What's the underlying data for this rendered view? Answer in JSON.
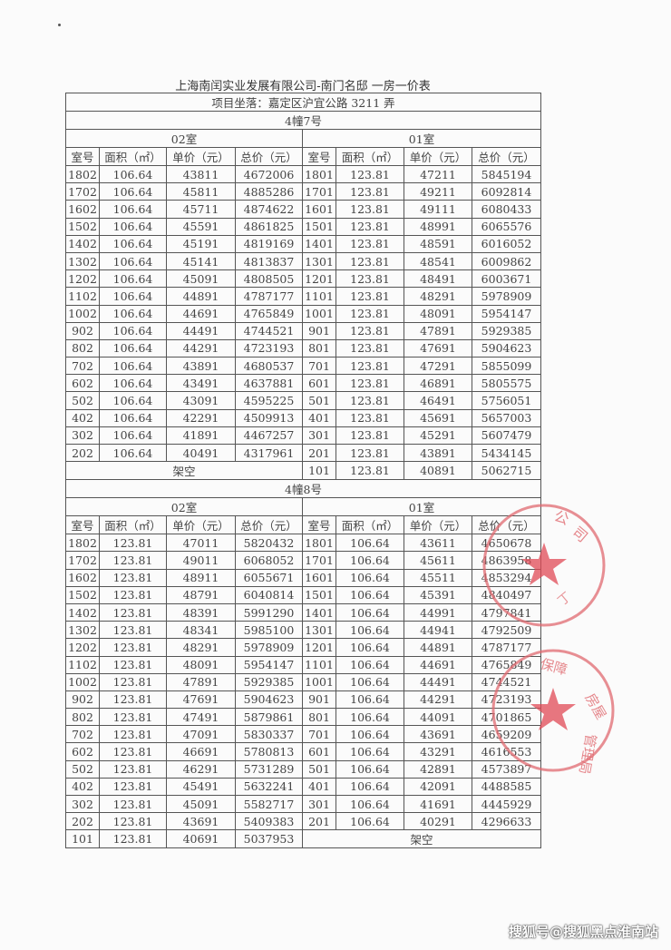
{
  "title": "上海南闰实业发展有限公司-南门名邸 一房一价表",
  "location": "项目坐落：嘉定区沪宜公路 3211 弄",
  "col_headers": [
    "室号",
    "面积（㎡）",
    "单价（元）",
    "总价（元）"
  ],
  "empty_label": "架空",
  "buildings": [
    {
      "name": "4幢7号",
      "left_unit": "02室",
      "right_unit": "01室",
      "rows": [
        [
          [
            "1802",
            "106.64",
            "43811",
            "4672006"
          ],
          [
            "1801",
            "123.81",
            "47211",
            "5845194"
          ]
        ],
        [
          [
            "1702",
            "106.64",
            "45811",
            "4885286"
          ],
          [
            "1701",
            "123.81",
            "49211",
            "6092814"
          ]
        ],
        [
          [
            "1602",
            "106.64",
            "45711",
            "4874622"
          ],
          [
            "1601",
            "123.81",
            "49111",
            "6080433"
          ]
        ],
        [
          [
            "1502",
            "106.64",
            "45591",
            "4861825"
          ],
          [
            "1501",
            "123.81",
            "48991",
            "6065576"
          ]
        ],
        [
          [
            "1402",
            "106.64",
            "45191",
            "4819169"
          ],
          [
            "1401",
            "123.81",
            "48591",
            "6016052"
          ]
        ],
        [
          [
            "1302",
            "106.64",
            "45141",
            "4813837"
          ],
          [
            "1301",
            "123.81",
            "48541",
            "6009862"
          ]
        ],
        [
          [
            "1202",
            "106.64",
            "45091",
            "4808505"
          ],
          [
            "1201",
            "123.81",
            "48491",
            "6003671"
          ]
        ],
        [
          [
            "1102",
            "106.64",
            "44891",
            "4787177"
          ],
          [
            "1101",
            "123.81",
            "48291",
            "5978909"
          ]
        ],
        [
          [
            "1002",
            "106.64",
            "44691",
            "4765849"
          ],
          [
            "1001",
            "123.81",
            "48091",
            "5954147"
          ]
        ],
        [
          [
            "902",
            "106.64",
            "44491",
            "4744521"
          ],
          [
            "901",
            "123.81",
            "47891",
            "5929385"
          ]
        ],
        [
          [
            "802",
            "106.64",
            "44291",
            "4723193"
          ],
          [
            "801",
            "123.81",
            "47691",
            "5904623"
          ]
        ],
        [
          [
            "702",
            "106.64",
            "43891",
            "4680537"
          ],
          [
            "701",
            "123.81",
            "47291",
            "5855099"
          ]
        ],
        [
          [
            "602",
            "106.64",
            "43491",
            "4637881"
          ],
          [
            "601",
            "123.81",
            "46891",
            "5805575"
          ]
        ],
        [
          [
            "502",
            "106.64",
            "43091",
            "4595225"
          ],
          [
            "501",
            "123.81",
            "46491",
            "5756051"
          ]
        ],
        [
          [
            "402",
            "106.64",
            "42291",
            "4509913"
          ],
          [
            "401",
            "123.81",
            "45691",
            "5657003"
          ]
        ],
        [
          [
            "302",
            "106.64",
            "41891",
            "4467257"
          ],
          [
            "301",
            "123.81",
            "45291",
            "5607479"
          ]
        ],
        [
          [
            "202",
            "106.64",
            "40491",
            "4317961"
          ],
          [
            "201",
            "123.81",
            "43891",
            "5434145"
          ]
        ],
        [
          null,
          [
            "101",
            "123.81",
            "40891",
            "5062715"
          ]
        ]
      ]
    },
    {
      "name": "4幢8号",
      "left_unit": "02室",
      "right_unit": "01室",
      "rows": [
        [
          [
            "1802",
            "123.81",
            "47011",
            "5820432"
          ],
          [
            "1801",
            "106.64",
            "43611",
            "4650678"
          ]
        ],
        [
          [
            "1702",
            "123.81",
            "49011",
            "6068052"
          ],
          [
            "1701",
            "106.64",
            "45611",
            "4863958"
          ]
        ],
        [
          [
            "1602",
            "123.81",
            "48911",
            "6055671"
          ],
          [
            "1601",
            "106.64",
            "45511",
            "4853294"
          ]
        ],
        [
          [
            "1502",
            "123.81",
            "48791",
            "6040814"
          ],
          [
            "1501",
            "106.64",
            "45391",
            "4840497"
          ]
        ],
        [
          [
            "1402",
            "123.81",
            "48391",
            "5991290"
          ],
          [
            "1401",
            "106.64",
            "44991",
            "4797841"
          ]
        ],
        [
          [
            "1302",
            "123.81",
            "48341",
            "5985100"
          ],
          [
            "1301",
            "106.64",
            "44941",
            "4792509"
          ]
        ],
        [
          [
            "1202",
            "123.81",
            "48291",
            "5978909"
          ],
          [
            "1201",
            "106.64",
            "44891",
            "4787177"
          ]
        ],
        [
          [
            "1102",
            "123.81",
            "48091",
            "5954147"
          ],
          [
            "1101",
            "106.64",
            "44691",
            "4765849"
          ]
        ],
        [
          [
            "1002",
            "123.81",
            "47891",
            "5929385"
          ],
          [
            "1001",
            "106.64",
            "44491",
            "4744521"
          ]
        ],
        [
          [
            "902",
            "123.81",
            "47691",
            "5904623"
          ],
          [
            "901",
            "106.64",
            "44291",
            "4723193"
          ]
        ],
        [
          [
            "802",
            "123.81",
            "47491",
            "5879861"
          ],
          [
            "801",
            "106.64",
            "44091",
            "4701865"
          ]
        ],
        [
          [
            "702",
            "123.81",
            "47091",
            "5830337"
          ],
          [
            "701",
            "106.64",
            "43691",
            "4659209"
          ]
        ],
        [
          [
            "602",
            "123.81",
            "46691",
            "5780813"
          ],
          [
            "601",
            "106.64",
            "43291",
            "4616553"
          ]
        ],
        [
          [
            "502",
            "123.81",
            "46291",
            "5731289"
          ],
          [
            "501",
            "106.64",
            "42891",
            "4573897"
          ]
        ],
        [
          [
            "402",
            "123.81",
            "45491",
            "5632241"
          ],
          [
            "401",
            "106.64",
            "42091",
            "4488585"
          ]
        ],
        [
          [
            "302",
            "123.81",
            "45091",
            "5582717"
          ],
          [
            "301",
            "106.64",
            "41691",
            "4445929"
          ]
        ],
        [
          [
            "202",
            "123.81",
            "43691",
            "5409383"
          ],
          [
            "201",
            "106.64",
            "40291",
            "4296633"
          ]
        ],
        [
          [
            "101",
            "123.81",
            "40691",
            "5037953"
          ],
          null
        ]
      ]
    }
  ],
  "stamps": [
    {
      "text": "…限公司 …南街丁",
      "color": "#d9484f"
    },
    {
      "text": "…房保障和房屋管理局",
      "color": "#d9484f"
    }
  ],
  "watermark": "搜狐号@搜狐黑点淮南站"
}
